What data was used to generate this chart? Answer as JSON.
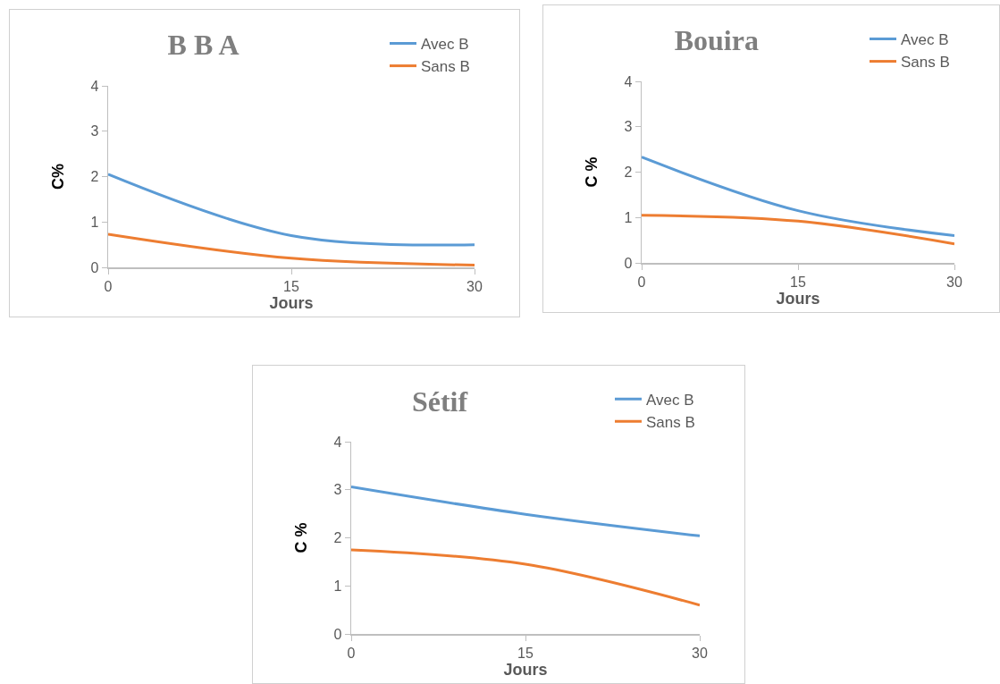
{
  "chart_data": [
    {
      "type": "line",
      "title": "B B A",
      "xlabel": "Jours",
      "ylabel": "C%",
      "x": [
        0,
        15,
        30
      ],
      "xlim": [
        0,
        30
      ],
      "xticks": [
        0,
        15,
        30
      ],
      "ylim": [
        0,
        4
      ],
      "yticks": [
        0,
        1,
        2,
        3,
        4
      ],
      "grid": false,
      "legend": "top right",
      "series": [
        {
          "name": "Avec B",
          "color": "#5b9bd5",
          "values": [
            2.05,
            0.7,
            0.5
          ]
        },
        {
          "name": "Sans B",
          "color": "#ed7d31",
          "values": [
            0.73,
            0.2,
            0.05
          ]
        }
      ]
    },
    {
      "type": "line",
      "title": "Bouira",
      "xlabel": "Jours",
      "ylabel": "C %",
      "x": [
        0,
        15,
        30
      ],
      "xlim": [
        0,
        30
      ],
      "xticks": [
        0,
        15,
        30
      ],
      "ylim": [
        0,
        4
      ],
      "yticks": [
        0,
        1,
        2,
        3,
        4
      ],
      "grid": false,
      "legend": "top right",
      "series": [
        {
          "name": "Avec B",
          "color": "#5b9bd5",
          "values": [
            2.33,
            1.15,
            0.6
          ]
        },
        {
          "name": "Sans B",
          "color": "#ed7d31",
          "values": [
            1.05,
            0.92,
            0.42
          ]
        }
      ]
    },
    {
      "type": "line",
      "title": "Sétif",
      "xlabel": "Jours",
      "ylabel": "C %",
      "x": [
        0,
        15,
        30
      ],
      "xlim": [
        0,
        30
      ],
      "xticks": [
        0,
        15,
        30
      ],
      "ylim": [
        0,
        4
      ],
      "yticks": [
        0,
        1,
        2,
        3,
        4
      ],
      "grid": false,
      "legend": "top right",
      "series": [
        {
          "name": "Avec B",
          "color": "#5b9bd5",
          "values": [
            3.06,
            2.49,
            2.04
          ]
        },
        {
          "name": "Sans B",
          "color": "#ed7d31",
          "values": [
            1.75,
            1.45,
            0.6
          ]
        }
      ]
    }
  ]
}
